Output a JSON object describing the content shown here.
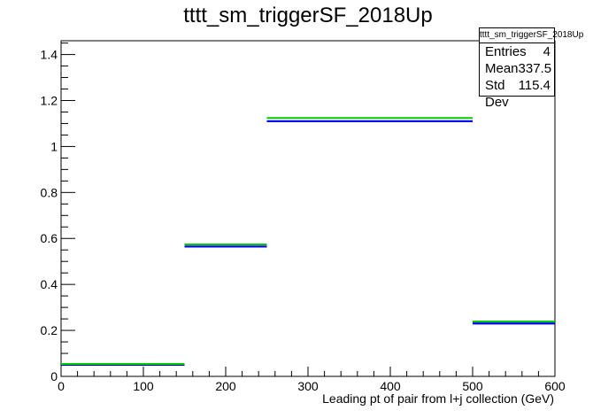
{
  "chart_data": {
    "type": "histogram-steps",
    "title": "tttt_sm_triggerSF_2018Up",
    "xlabel": "Leading pt of pair from l+j collection (GeV)",
    "ylabel": "",
    "xlim": [
      0,
      600
    ],
    "ylim": [
      0,
      1.46
    ],
    "x_ticks": [
      0,
      100,
      200,
      300,
      400,
      500,
      600
    ],
    "y_ticks": [
      0,
      0.2,
      0.4,
      0.6,
      0.8,
      1,
      1.2,
      1.4
    ],
    "bins": [
      [
        0,
        150
      ],
      [
        150,
        250
      ],
      [
        250,
        500
      ],
      [
        500,
        600
      ]
    ],
    "series": [
      {
        "color": "#000000",
        "values": [
          0.05,
          0.565,
          1.11,
          0.23
        ]
      },
      {
        "color": "#0000ff",
        "values": [
          0.05,
          0.565,
          1.11,
          0.23
        ]
      },
      {
        "color": "#00cc00",
        "values": [
          0.05,
          0.57,
          1.12,
          0.235
        ]
      }
    ],
    "grid": false,
    "stats_box": {
      "name": "tttt_sm_triggerSF_2018Up",
      "entries_label": "Entries",
      "entries": "4",
      "mean_label": "Mean",
      "mean": "337.5",
      "std_label": "Std Dev",
      "std": "115.4"
    }
  }
}
